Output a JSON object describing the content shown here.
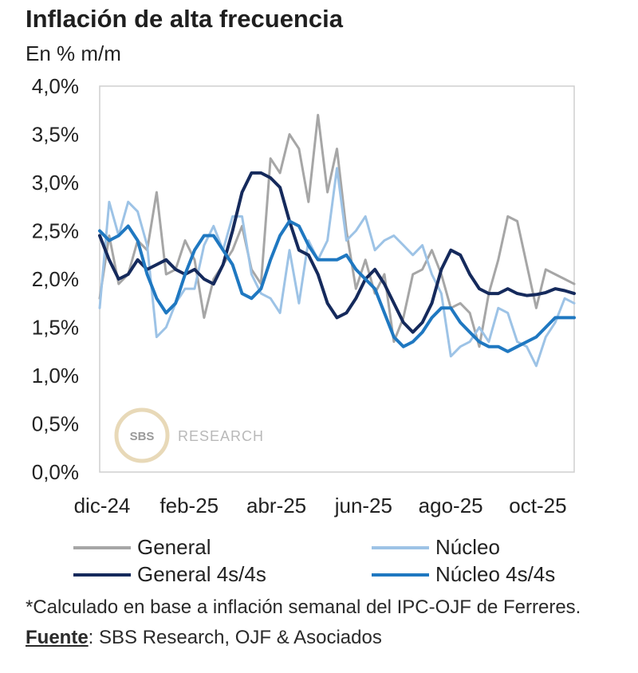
{
  "header": {
    "title": "Inflación de alta frecuencia",
    "subtitle": "En % m/m"
  },
  "colors": {
    "general": "#a6a6a6",
    "nucleo": "#9dc3e6",
    "general_4s": "#152a5c",
    "nucleo_4s": "#1f78c1",
    "frame": "#cfcfcf"
  },
  "watermark": {
    "logo": "SBS",
    "text": "RESEARCH"
  },
  "legend": [
    {
      "key": "general",
      "label": "General"
    },
    {
      "key": "nucleo",
      "label": "Núcleo"
    },
    {
      "key": "general_4s",
      "label": "General 4s/4s"
    },
    {
      "key": "nucleo_4s",
      "label": "Núcleo 4s/4s"
    }
  ],
  "note": {
    "prefix": "*Calculado en base a inflación semanal del IPC-OJF de Ferreres. ",
    "source_label": "Fuente",
    "source_text": ": SBS Research,  OJF & Asociados"
  },
  "chart_data": {
    "type": "line",
    "title": "Inflación de alta frecuencia",
    "ylabel": "En % m/m",
    "xlabel": "",
    "ylim": [
      0,
      4
    ],
    "yticks": [
      0,
      0.5,
      1,
      1.5,
      2,
      2.5,
      3,
      3.5,
      4
    ],
    "ytick_labels": [
      "0,0%",
      "0,5%",
      "1,0%",
      "1,5%",
      "2,0%",
      "2,5%",
      "3,0%",
      "3,5%",
      "4,0%"
    ],
    "xlim": [
      0,
      49
    ],
    "xticks": [
      {
        "label": "dic-24",
        "x": 0
      },
      {
        "label": "feb-25",
        "x": 9
      },
      {
        "label": "abr-25",
        "x": 18
      },
      {
        "label": "jun-25",
        "x": 27
      },
      {
        "label": "ago-25",
        "x": 36
      },
      {
        "label": "oct-25",
        "x": 45
      }
    ],
    "grid": false,
    "legend_position": "bottom",
    "series": [
      {
        "name": "General",
        "key": "general",
        "width": 3,
        "values": [
          1.8,
          2.45,
          1.95,
          2.05,
          2.4,
          2.3,
          2.9,
          2.05,
          2.1,
          2.4,
          2.2,
          1.6,
          2.0,
          2.15,
          2.3,
          2.55,
          2.1,
          1.95,
          3.25,
          3.1,
          3.5,
          3.35,
          2.8,
          3.7,
          2.9,
          3.35,
          2.5,
          1.9,
          2.2,
          1.85,
          2.05,
          1.35,
          1.6,
          2.05,
          2.1,
          2.3,
          2.05,
          1.7,
          1.75,
          1.65,
          1.3,
          1.85,
          2.2,
          2.65,
          2.6,
          2.15,
          1.7,
          2.1,
          2.05,
          2.0,
          1.95
        ]
      },
      {
        "name": "Núcleo",
        "key": "nucleo",
        "width": 3,
        "values": [
          1.7,
          2.8,
          2.45,
          2.8,
          2.7,
          2.35,
          1.4,
          1.5,
          1.75,
          1.9,
          1.9,
          2.35,
          2.55,
          2.3,
          2.65,
          2.65,
          2.05,
          1.85,
          1.8,
          1.65,
          2.3,
          1.75,
          2.4,
          2.2,
          2.4,
          3.15,
          2.4,
          2.5,
          2.65,
          2.3,
          2.4,
          2.45,
          2.35,
          2.25,
          2.35,
          2.05,
          1.85,
          1.2,
          1.3,
          1.35,
          1.5,
          1.35,
          1.7,
          1.65,
          1.35,
          1.3,
          1.1,
          1.4,
          1.55,
          1.8,
          1.75
        ]
      },
      {
        "name": "General 4s/4s",
        "key": "general_4s",
        "width": 4,
        "values": [
          2.45,
          2.2,
          2.0,
          2.05,
          2.2,
          2.1,
          2.15,
          2.2,
          2.1,
          2.05,
          2.1,
          2.0,
          1.95,
          2.15,
          2.5,
          2.9,
          3.1,
          3.1,
          3.05,
          2.95,
          2.6,
          2.3,
          2.25,
          2.05,
          1.75,
          1.6,
          1.65,
          1.8,
          2.0,
          2.1,
          1.95,
          1.75,
          1.55,
          1.45,
          1.55,
          1.75,
          2.1,
          2.3,
          2.25,
          2.05,
          1.9,
          1.85,
          1.85,
          1.9,
          1.85,
          1.83,
          1.84,
          1.86,
          1.9,
          1.88,
          1.85
        ]
      },
      {
        "name": "Núcleo 4s/4s",
        "key": "nucleo_4s",
        "width": 4,
        "values": [
          2.5,
          2.4,
          2.45,
          2.55,
          2.4,
          2.05,
          1.8,
          1.65,
          1.75,
          2.05,
          2.3,
          2.45,
          2.45,
          2.3,
          2.15,
          1.85,
          1.8,
          1.9,
          2.2,
          2.45,
          2.6,
          2.55,
          2.35,
          2.2,
          2.2,
          2.2,
          2.25,
          2.1,
          2.0,
          1.9,
          1.65,
          1.4,
          1.3,
          1.35,
          1.45,
          1.6,
          1.7,
          1.7,
          1.55,
          1.45,
          1.35,
          1.3,
          1.3,
          1.25,
          1.3,
          1.35,
          1.4,
          1.5,
          1.6,
          1.6,
          1.6
        ]
      }
    ]
  }
}
